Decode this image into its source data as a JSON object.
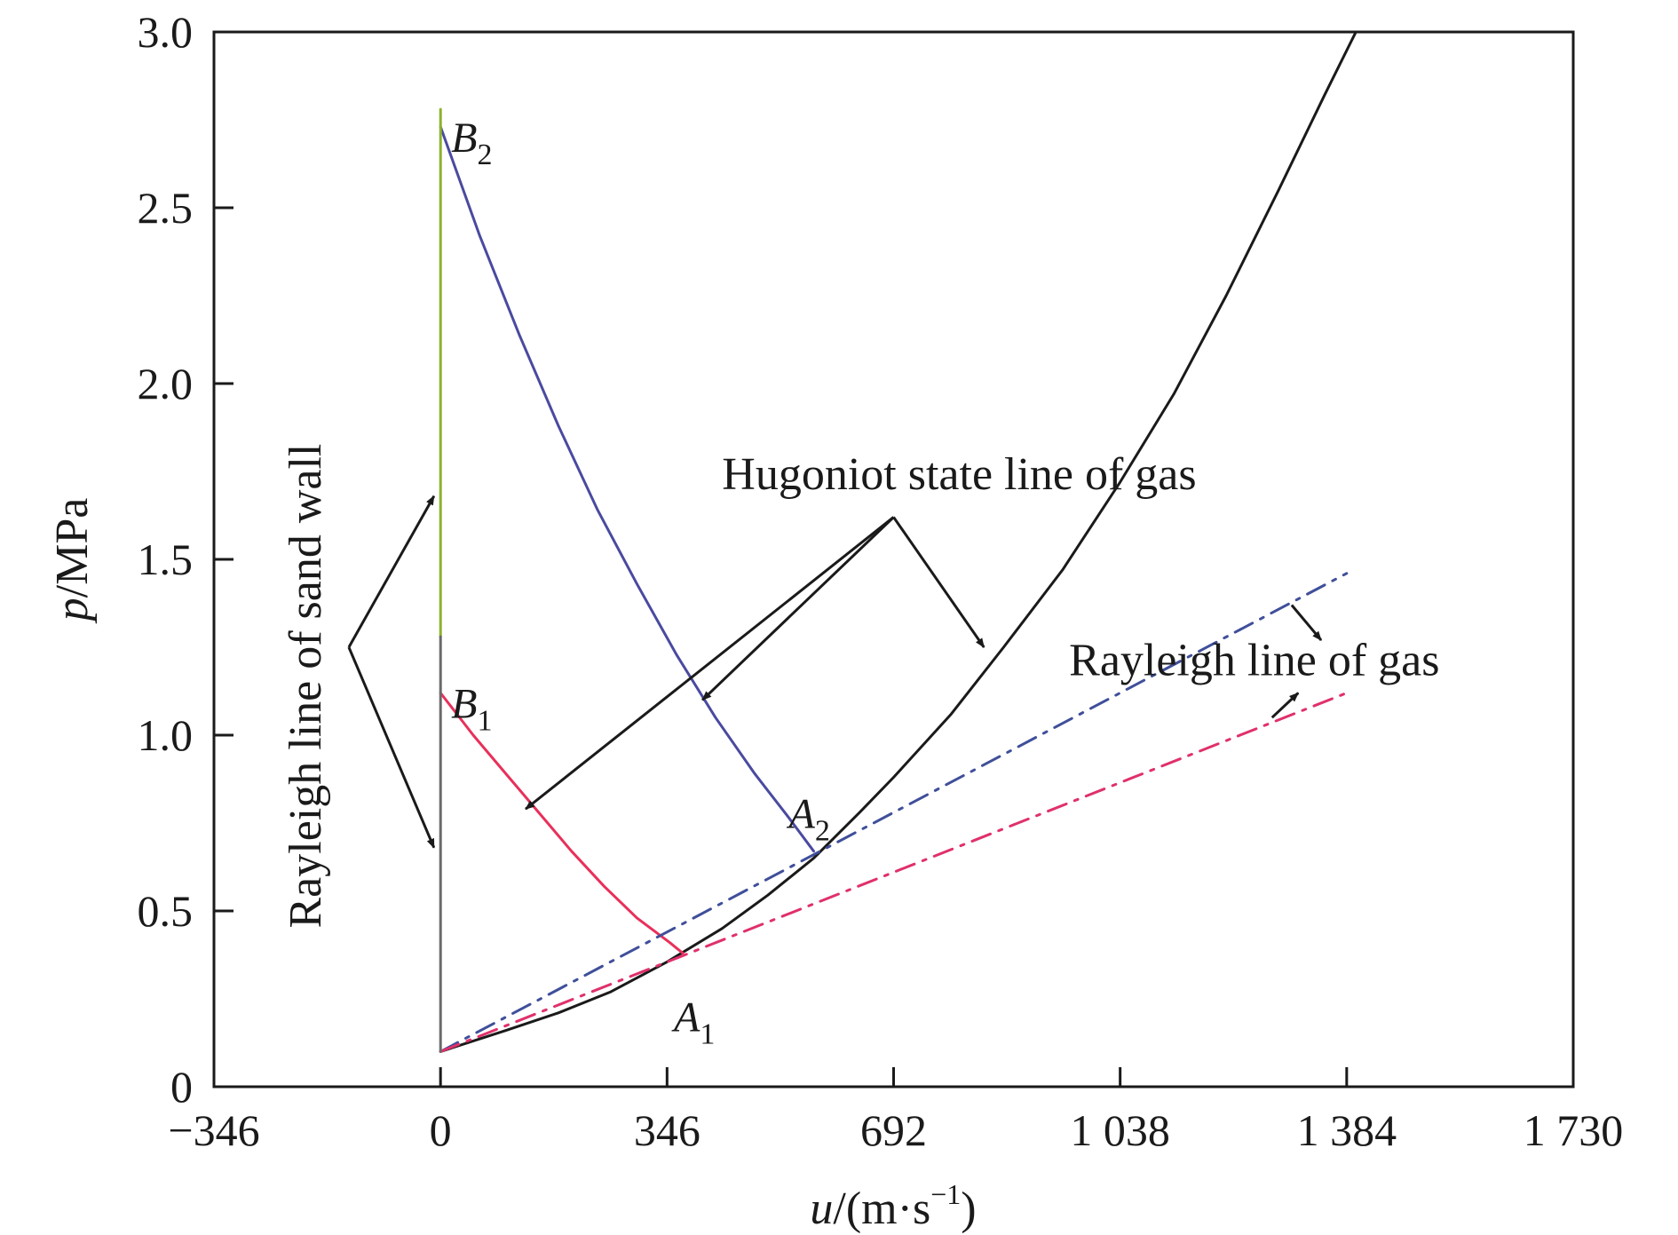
{
  "chart_data": {
    "type": "line",
    "xlabel": "u/(m·s⁻¹)",
    "xlabel_parts": {
      "var": "u",
      "unit_open": "/(m·s",
      "unit_exp": "−1",
      "unit_close": ")"
    },
    "ylabel": "p/MPa",
    "ylabel_parts": {
      "var": "p",
      "unit": "/MPa"
    },
    "xlim": [
      -346,
      1730
    ],
    "ylim": [
      0,
      3.0
    ],
    "x_ticks": [
      -346,
      0,
      346,
      692,
      1038,
      1384,
      1730
    ],
    "x_tick_labels": [
      "−346",
      "0",
      "346",
      "692",
      "1 038",
      "1 384",
      "1 730"
    ],
    "y_ticks": [
      0,
      0.5,
      1.0,
      1.5,
      2.0,
      2.5,
      3.0
    ],
    "y_tick_labels": [
      "0",
      "0.5",
      "1.0",
      "1.5",
      "2.0",
      "2.5",
      "3.0"
    ],
    "grid": false,
    "legend": "none",
    "series": [
      {
        "key": "hugoniot_gas",
        "color": "#1a1a1a",
        "dash": "solid",
        "points": [
          [
            0,
            0.1
          ],
          [
            100,
            0.16
          ],
          [
            180,
            0.21
          ],
          [
            260,
            0.27
          ],
          [
            346,
            0.355
          ],
          [
            430,
            0.45
          ],
          [
            500,
            0.545
          ],
          [
            570,
            0.65
          ],
          [
            640,
            0.78
          ],
          [
            692,
            0.88
          ],
          [
            780,
            1.06
          ],
          [
            860,
            1.25
          ],
          [
            950,
            1.47
          ],
          [
            1038,
            1.72
          ],
          [
            1120,
            1.97
          ],
          [
            1200,
            2.25
          ],
          [
            1280,
            2.55
          ],
          [
            1350,
            2.82
          ],
          [
            1398,
            3.0
          ]
        ]
      },
      {
        "key": "expansion_B2_A2",
        "color": "#4a4aa0",
        "dash": "solid",
        "points": [
          [
            0,
            2.73
          ],
          [
            60,
            2.42
          ],
          [
            120,
            2.14
          ],
          [
            180,
            1.88
          ],
          [
            240,
            1.64
          ],
          [
            300,
            1.43
          ],
          [
            360,
            1.23
          ],
          [
            420,
            1.05
          ],
          [
            480,
            0.89
          ],
          [
            530,
            0.77
          ],
          [
            570,
            0.67
          ]
        ]
      },
      {
        "key": "expansion_B1_A1",
        "color": "#e8305a",
        "dash": "solid",
        "points": [
          [
            0,
            1.12
          ],
          [
            50,
            1.0
          ],
          [
            100,
            0.89
          ],
          [
            150,
            0.78
          ],
          [
            200,
            0.67
          ],
          [
            250,
            0.57
          ],
          [
            300,
            0.48
          ],
          [
            350,
            0.41
          ],
          [
            370,
            0.38
          ]
        ]
      },
      {
        "key": "rayleigh_gas_upper",
        "color": "#3f4f9a",
        "dash": "dashdot",
        "points": [
          [
            0,
            0.1
          ],
          [
            1384,
            1.46
          ]
        ]
      },
      {
        "key": "rayleigh_gas_lower",
        "color": "#e0306a",
        "dash": "dashdot",
        "points": [
          [
            0,
            0.1
          ],
          [
            1384,
            1.12
          ]
        ]
      },
      {
        "key": "rayleigh_sand_wall_upper",
        "color": "#8db22e",
        "dash": "solid",
        "points": [
          [
            0,
            1.28
          ],
          [
            0,
            2.78
          ]
        ]
      },
      {
        "key": "rayleigh_sand_wall_lower",
        "color": "#6a6a6a",
        "dash": "solid",
        "points": [
          [
            0,
            0.1
          ],
          [
            0,
            1.28
          ]
        ]
      }
    ],
    "points_labels": [
      {
        "main": "B",
        "sub": "2",
        "x": 0,
        "y": 2.73,
        "dx": 12,
        "dy": 10
      },
      {
        "main": "B",
        "sub": "1",
        "x": 0,
        "y": 1.12,
        "dx": 12,
        "dy": 10
      },
      {
        "main": "A",
        "sub": "2",
        "x": 570,
        "y": 0.67,
        "dx": -28,
        "dy": -44
      },
      {
        "main": "A",
        "sub": "1",
        "x": 370,
        "y": 0.38,
        "dx": -10,
        "dy": 70
      }
    ],
    "annotations": [
      {
        "text": "Hugoniot state line of gas",
        "x": 430,
        "y": 1.7,
        "rotate": 0
      },
      {
        "text": "Rayleigh line of gas",
        "x": 960,
        "y": 1.17,
        "rotate": 0
      },
      {
        "text": "Rayleigh line of sand wall",
        "x": -183,
        "y": 1.14,
        "rotate": -90
      }
    ],
    "arrows": [
      {
        "from": [
          692,
          1.62
        ],
        "to": [
          830,
          1.25
        ]
      },
      {
        "from": [
          692,
          1.62
        ],
        "to": [
          400,
          1.1
        ]
      },
      {
        "from": [
          692,
          1.62
        ],
        "to": [
          130,
          0.79
        ]
      },
      {
        "from": [
          -140,
          1.25
        ],
        "to": [
          -10,
          1.68
        ]
      },
      {
        "from": [
          -140,
          1.25
        ],
        "to": [
          -10,
          0.68
        ]
      },
      {
        "from": [
          1300,
          1.37
        ],
        "to": [
          1345,
          1.27
        ]
      },
      {
        "from": [
          1270,
          1.05
        ],
        "to": [
          1310,
          1.12
        ]
      }
    ]
  }
}
